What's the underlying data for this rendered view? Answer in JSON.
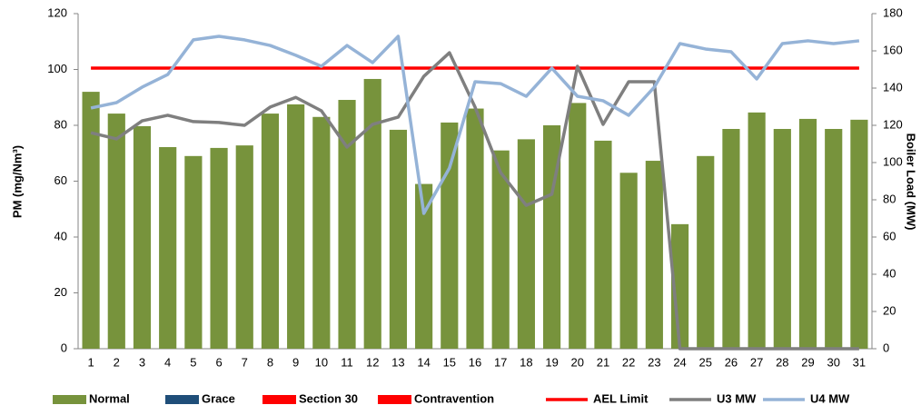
{
  "chart_data": {
    "type": "bar",
    "categories": [
      "1",
      "2",
      "3",
      "4",
      "5",
      "6",
      "7",
      "8",
      "9",
      "10",
      "11",
      "12",
      "13",
      "14",
      "15",
      "16",
      "17",
      "18",
      "19",
      "20",
      "21",
      "22",
      "23",
      "24",
      "25",
      "26",
      "27",
      "28",
      "29",
      "30",
      "31"
    ],
    "y_label": "PM (mg/Nm³)",
    "y2_label": "Boiler Load (MW)",
    "ylim": [
      0,
      120
    ],
    "yticks": [
      0,
      20,
      40,
      60,
      80,
      100,
      120
    ],
    "y2lim": [
      0,
      180
    ],
    "y2ticks": [
      0,
      20,
      40,
      60,
      80,
      100,
      120,
      140,
      160,
      180
    ],
    "grid": false,
    "legend": "bottom",
    "series": [
      {
        "name": "Normal",
        "type": "bar",
        "color": "#77933c",
        "values": [
          92,
          84.2,
          79.7,
          72.2,
          69,
          71.9,
          72.8,
          84.2,
          87.5,
          83,
          89.1,
          96.6,
          78.4,
          59,
          81,
          86,
          71,
          75,
          80,
          88,
          74.5,
          63,
          67.3,
          44.6,
          69,
          78.7,
          84.6,
          78.7,
          82.3,
          78.7,
          82
        ]
      },
      {
        "name": "Grace",
        "type": "bar",
        "color": "#1f4e79",
        "values": [
          null,
          null,
          null,
          null,
          null,
          null,
          null,
          null,
          null,
          null,
          null,
          null,
          null,
          null,
          null,
          null,
          null,
          null,
          null,
          null,
          null,
          null,
          null,
          null,
          null,
          null,
          null,
          null,
          null,
          null,
          null
        ]
      },
      {
        "name": "Section 30",
        "type": "bar",
        "color": "#ff0000",
        "values": [
          null,
          null,
          null,
          null,
          null,
          null,
          null,
          null,
          null,
          null,
          null,
          null,
          null,
          null,
          null,
          null,
          null,
          null,
          null,
          null,
          null,
          null,
          null,
          null,
          null,
          null,
          null,
          null,
          null,
          null,
          null
        ]
      },
      {
        "name": "Contravention",
        "type": "bar",
        "color": "#ff0000",
        "values": [
          null,
          null,
          null,
          null,
          null,
          null,
          null,
          null,
          null,
          null,
          null,
          null,
          null,
          null,
          null,
          null,
          null,
          null,
          null,
          null,
          null,
          null,
          null,
          null,
          null,
          null,
          null,
          null,
          null,
          null,
          null
        ]
      },
      {
        "name": "AEL Limit",
        "type": "line",
        "color": "#ff0000",
        "values": [
          100.5,
          100.5,
          100.5,
          100.5,
          100.5,
          100.5,
          100.5,
          100.5,
          100.5,
          100.5,
          100.5,
          100.5,
          100.5,
          100.5,
          100.5,
          100.5,
          100.5,
          100.5,
          100.5,
          100.5,
          100.5,
          100.5,
          100.5,
          100.5,
          100.5,
          100.5,
          100.5,
          100.5,
          100.5,
          100.5,
          100.5
        ]
      },
      {
        "name": "U3 MW",
        "type": "line",
        "axis": "y2",
        "color": "#7f7f7f",
        "values": [
          116,
          112.7,
          122.4,
          125.4,
          122,
          121.5,
          120,
          129.8,
          135,
          127.8,
          108.3,
          120.5,
          124.4,
          146.3,
          159,
          129.8,
          94.6,
          77,
          83,
          151.7,
          120.5,
          143.4,
          143.4,
          0,
          0,
          0,
          0,
          0,
          0,
          0,
          0
        ]
      },
      {
        "name": "U4 MW",
        "type": "line",
        "axis": "y2",
        "color": "#95b3d7",
        "values": [
          129.3,
          132.2,
          140.5,
          147.3,
          165.9,
          167.8,
          165.9,
          162.9,
          157.6,
          151.7,
          162.9,
          153.7,
          167.8,
          72.7,
          97,
          143.4,
          142.4,
          135.6,
          150.7,
          135.6,
          133.2,
          125.4,
          140.5,
          163.9,
          161,
          159.5,
          144.9,
          163.9,
          165.4,
          163.9,
          165.4
        ]
      }
    ]
  }
}
